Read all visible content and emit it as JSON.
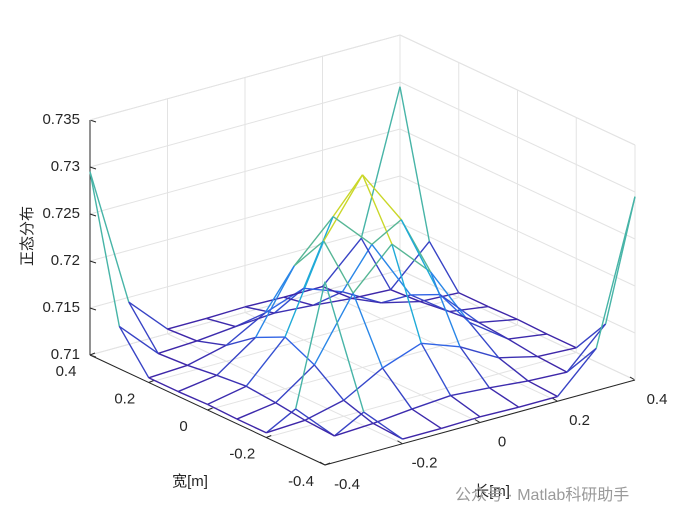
{
  "chart_data": {
    "type": "mesh3d",
    "xlabel": "长[m]",
    "ylabel": "宽[m]",
    "zlabel": "正态分布",
    "watermark": "公众号 · Matlab科研助手",
    "x": [
      -0.4,
      -0.3,
      -0.2,
      -0.1,
      0,
      0.1,
      0.2,
      0.3,
      0.4
    ],
    "y": [
      -0.4,
      -0.3,
      -0.2,
      -0.1,
      0,
      0.1,
      0.2,
      0.3,
      0.4
    ],
    "z": [
      [
        0.7295,
        0.7145,
        0.7105,
        0.7105,
        0.7106,
        0.7105,
        0.7105,
        0.7145,
        0.7295
      ],
      [
        0.7145,
        0.7105,
        0.7107,
        0.7111,
        0.7114,
        0.7111,
        0.7107,
        0.7105,
        0.7145
      ],
      [
        0.7105,
        0.7107,
        0.7117,
        0.714,
        0.7155,
        0.714,
        0.7117,
        0.7107,
        0.7105
      ],
      [
        0.7105,
        0.7111,
        0.714,
        0.7205,
        0.7246,
        0.7205,
        0.714,
        0.7111,
        0.7105
      ],
      [
        0.7106,
        0.7114,
        0.7155,
        0.7246,
        0.7305,
        0.7246,
        0.7155,
        0.7114,
        0.7106
      ],
      [
        0.7105,
        0.7111,
        0.714,
        0.7205,
        0.7246,
        0.7205,
        0.714,
        0.7111,
        0.7105
      ],
      [
        0.7105,
        0.7107,
        0.7117,
        0.714,
        0.7155,
        0.714,
        0.7117,
        0.7107,
        0.7105
      ],
      [
        0.7145,
        0.7105,
        0.7107,
        0.7111,
        0.7114,
        0.7111,
        0.7107,
        0.7105,
        0.7145
      ],
      [
        0.7295,
        0.7145,
        0.7105,
        0.7105,
        0.7106,
        0.7105,
        0.7105,
        0.7145,
        0.7295
      ]
    ],
    "xlim": [
      -0.4,
      0.4
    ],
    "ylim": [
      -0.4,
      0.4
    ],
    "zlim": [
      0.71,
      0.735
    ],
    "xticks": [
      -0.4,
      -0.2,
      0,
      0.2,
      0.4
    ],
    "yticks": [
      -0.4,
      -0.2,
      0,
      0.2,
      0.4
    ],
    "zticks": [
      0.71,
      0.715,
      0.72,
      0.725,
      0.73,
      0.735
    ],
    "grid": true,
    "colormap": [
      "#3e26a8",
      "#2f6ff0",
      "#1db0d6",
      "#a9be38",
      "#f9fb14"
    ]
  }
}
